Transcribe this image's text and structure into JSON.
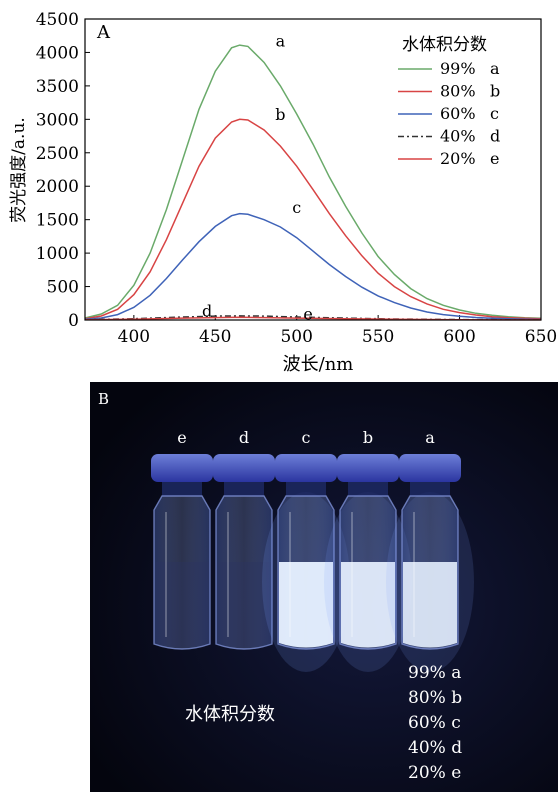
{
  "panel_a": {
    "label": "A",
    "legend_title": "水体积分数",
    "legend": [
      {
        "pct": "99%",
        "letter": "a",
        "color": "#6aaa6a",
        "dash": ""
      },
      {
        "pct": "80%",
        "letter": "b",
        "color": "#d84444",
        "dash": ""
      },
      {
        "pct": "60%",
        "letter": "c",
        "color": "#3f63b8",
        "dash": ""
      },
      {
        "pct": "40%",
        "letter": "d",
        "color": "#333333",
        "dash": "6 3 2 3"
      },
      {
        "pct": "20%",
        "letter": "e",
        "color": "#d84444",
        "dash": ""
      }
    ],
    "curve_labels": [
      "a",
      "b",
      "c",
      "d",
      "e"
    ]
  },
  "chart_data": {
    "type": "line",
    "xlabel": "波长/nm",
    "ylabel": "荧光强度/a.u.",
    "xlim": [
      370,
      650
    ],
    "ylim": [
      0,
      4500
    ],
    "xticks": [
      400,
      450,
      500,
      550,
      600,
      650
    ],
    "yticks": [
      0,
      500,
      1000,
      1500,
      2000,
      2500,
      3000,
      3500,
      4000,
      4500
    ],
    "series": [
      {
        "name": "99% a",
        "color": "#6aaa6a",
        "x": [
          370,
          380,
          390,
          400,
          410,
          420,
          430,
          440,
          450,
          460,
          465,
          470,
          480,
          490,
          500,
          510,
          520,
          530,
          540,
          550,
          560,
          570,
          580,
          590,
          600,
          610,
          620,
          630,
          640,
          650
        ],
        "y": [
          30,
          90,
          220,
          520,
          1000,
          1650,
          2400,
          3150,
          3720,
          4070,
          4110,
          4090,
          3850,
          3500,
          3080,
          2630,
          2140,
          1700,
          1300,
          950,
          680,
          470,
          320,
          220,
          150,
          100,
          70,
          50,
          35,
          25
        ]
      },
      {
        "name": "80% b",
        "color": "#d84444",
        "x": [
          370,
          380,
          390,
          400,
          410,
          420,
          430,
          440,
          450,
          460,
          465,
          470,
          480,
          490,
          500,
          510,
          520,
          530,
          540,
          550,
          560,
          570,
          580,
          590,
          600,
          610,
          620,
          630,
          640,
          650
        ],
        "y": [
          20,
          60,
          160,
          380,
          720,
          1200,
          1750,
          2300,
          2720,
          2960,
          3000,
          2990,
          2840,
          2600,
          2300,
          1950,
          1590,
          1260,
          960,
          700,
          500,
          350,
          240,
          160,
          110,
          75,
          50,
          35,
          25,
          18
        ]
      },
      {
        "name": "60% c",
        "color": "#3f63b8",
        "x": [
          370,
          380,
          390,
          400,
          410,
          420,
          430,
          440,
          450,
          460,
          465,
          470,
          480,
          490,
          500,
          510,
          520,
          530,
          540,
          550,
          560,
          570,
          580,
          590,
          600,
          610,
          620,
          630,
          640,
          650
        ],
        "y": [
          10,
          30,
          80,
          190,
          370,
          620,
          900,
          1170,
          1400,
          1560,
          1590,
          1580,
          1500,
          1390,
          1230,
          1030,
          830,
          650,
          490,
          360,
          260,
          180,
          120,
          80,
          55,
          38,
          26,
          18,
          12,
          8
        ]
      },
      {
        "name": "40% d",
        "color": "#333333",
        "x": [
          370,
          400,
          430,
          450,
          465,
          480,
          500,
          530,
          560,
          600,
          650
        ],
        "y": [
          5,
          20,
          45,
          58,
          62,
          58,
          45,
          28,
          15,
          6,
          3
        ]
      },
      {
        "name": "20% e",
        "color": "#d84444",
        "x": [
          370,
          400,
          430,
          450,
          465,
          480,
          500,
          530,
          560,
          600,
          650
        ],
        "y": [
          3,
          12,
          28,
          36,
          40,
          36,
          28,
          18,
          10,
          4,
          2
        ]
      }
    ]
  },
  "panel_b": {
    "label": "B",
    "vial_letters": [
      "e",
      "d",
      "c",
      "b",
      "a"
    ],
    "vial_glow": [
      0.05,
      0.08,
      0.9,
      0.85,
      0.75
    ],
    "caption": "水体积分数",
    "legend": [
      "99% a",
      "80% b",
      "60% c",
      "40% d",
      "20% e"
    ]
  }
}
